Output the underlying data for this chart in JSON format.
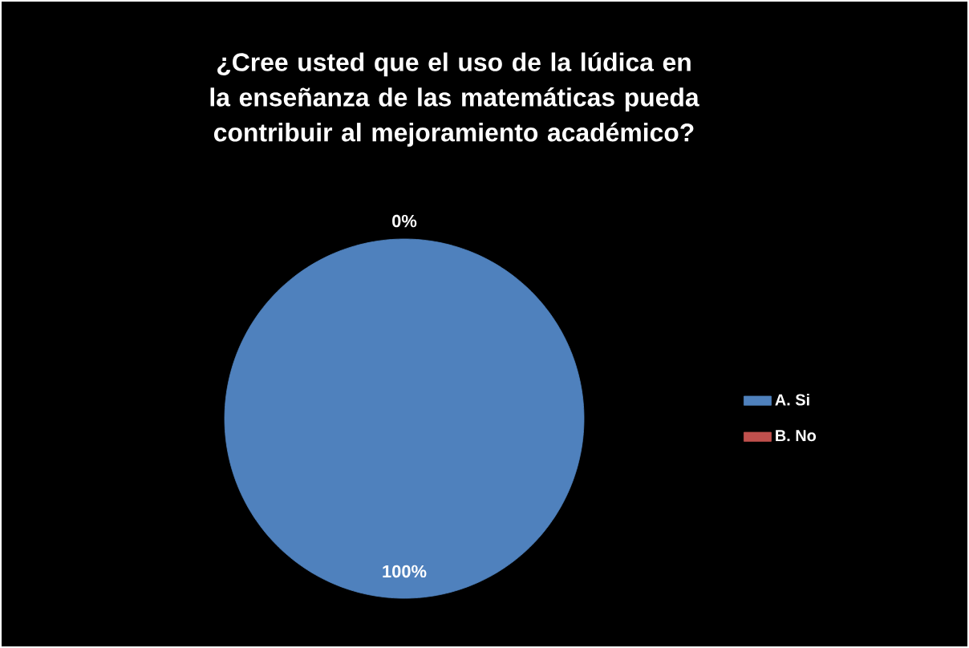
{
  "chart_data": {
    "type": "pie",
    "title": "¿Cree usted que el uso de la lúdica en la enseñanza de las matemáticas pueda contribuir al mejoramiento académico?",
    "categories": [
      "A. Si",
      "B. No"
    ],
    "values": [
      100,
      0
    ],
    "colors": [
      "#4f81bd",
      "#c0504d"
    ],
    "value_labels": [
      "100%",
      "0%"
    ],
    "legend": "right"
  }
}
